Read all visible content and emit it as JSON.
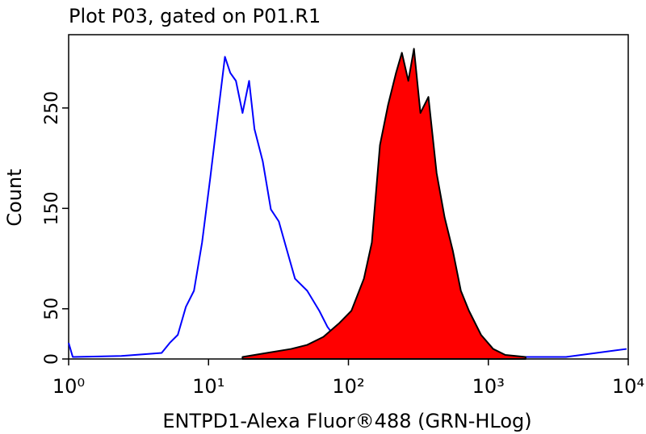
{
  "chart_data": {
    "type": "histogram-overlay",
    "title": "Plot P03, gated on P01.R1",
    "x_label": "ENTPD1-Alexa Fluor®488 (GRN-HLog)",
    "y_label": "Count",
    "x_log": true,
    "xlim": [
      1,
      10000
    ],
    "xticks": [
      {
        "value": 1,
        "label": "10⁰"
      },
      {
        "value": 10,
        "label": "10¹"
      },
      {
        "value": 100,
        "label": "10²"
      },
      {
        "value": 1000,
        "label": "10³"
      },
      {
        "value": 10000,
        "label": "10⁴"
      }
    ],
    "ylim": [
      0,
      323
    ],
    "yticks": [
      0,
      50,
      150,
      250
    ],
    "series": [
      {
        "color": "#0000ff",
        "fill": null,
        "x": [
          1,
          1.07,
          2.38,
          4.62,
          5.28,
          6.03,
          6.89,
          7.87,
          8.99,
          10.3,
          11.7,
          13.1,
          14.3,
          15.7,
          17.5,
          19.5,
          21.3,
          24.4,
          27.9,
          31.8,
          36.4,
          41.5,
          50.7,
          61.9,
          70.8,
          86.4,
          113,
          168,
          487,
          3590,
          9730
        ],
        "values": [
          16,
          2,
          3,
          6,
          16,
          24,
          52,
          68,
          116,
          181,
          245,
          301,
          285,
          277,
          245,
          277,
          229,
          197,
          149,
          137,
          108,
          80,
          68,
          48,
          32,
          16,
          6,
          2,
          2,
          2,
          10
        ]
      },
      {
        "color": "#000000",
        "fill": "#ff0000",
        "x": [
          17.5,
          26.1,
          38.9,
          50.7,
          66.2,
          86.4,
          105,
          129,
          147,
          168,
          192,
          219,
          241,
          268,
          294,
          327,
          373,
          427,
          487,
          557,
          636,
          727,
          887,
          1083,
          1322,
          1845
        ],
        "values": [
          2,
          6,
          10,
          14,
          22,
          36,
          48,
          80,
          116,
          213,
          253,
          285,
          305,
          277,
          309,
          245,
          261,
          185,
          141,
          108,
          68,
          48,
          24,
          10,
          4,
          2
        ]
      }
    ]
  }
}
